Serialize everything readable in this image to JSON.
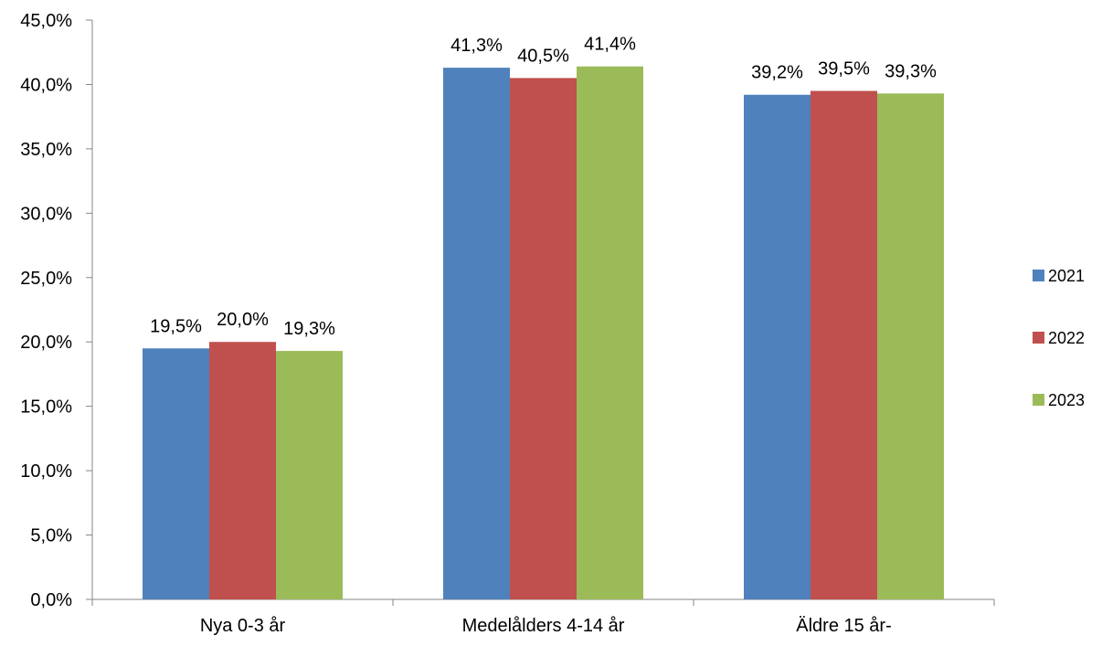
{
  "chart_data": {
    "type": "bar",
    "categories": [
      "Nya 0-3 år",
      "Medelålders 4-14 år",
      "Äldre 15 år-"
    ],
    "series": [
      {
        "name": "2021",
        "color": "#4F81BD",
        "values": [
          19.5,
          41.3,
          39.2
        ],
        "labels": [
          "19,5%",
          "41,3%",
          "39,2%"
        ]
      },
      {
        "name": "2022",
        "color": "#C0504D",
        "values": [
          20.0,
          40.5,
          39.5
        ],
        "labels": [
          "20,0%",
          "40,5%",
          "39,5%"
        ]
      },
      {
        "name": "2023",
        "color": "#9BBB59",
        "values": [
          19.3,
          41.4,
          39.3
        ],
        "labels": [
          "19,3%",
          "41,4%",
          "39,3%"
        ]
      }
    ],
    "ylim": [
      0,
      45
    ],
    "yticks": [
      0,
      5,
      10,
      15,
      20,
      25,
      30,
      35,
      40,
      45
    ],
    "ytick_labels": [
      "0,0%",
      "5,0%",
      "10,0%",
      "15,0%",
      "20,0%",
      "25,0%",
      "30,0%",
      "35,0%",
      "40,0%",
      "45,0%"
    ],
    "title": "",
    "xlabel": "",
    "ylabel": "",
    "grid": false,
    "legend_position": "right"
  }
}
